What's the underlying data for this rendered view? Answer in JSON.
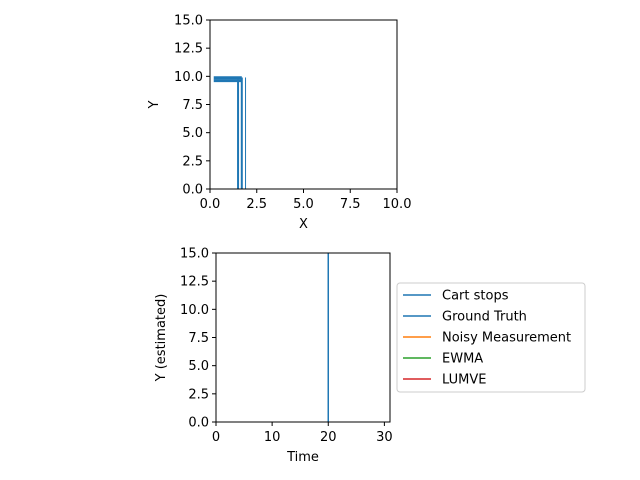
{
  "chart_data": [
    {
      "type": "line",
      "xlabel": "X",
      "ylabel": "Y",
      "xlim": [
        0,
        10
      ],
      "ylim": [
        0,
        15
      ],
      "xticks": [
        "0.0",
        "2.5",
        "5.0",
        "7.5",
        "10.0"
      ],
      "yticks": [
        "0.0",
        "2.5",
        "5.0",
        "7.5",
        "10.0",
        "12.5",
        "15.0"
      ],
      "series": [
        {
          "color": "#1f77b4",
          "x": [
            0.2,
            1.7
          ],
          "y": [
            9.85,
            9.85
          ],
          "width": 3.5
        },
        {
          "color": "#1f77b4",
          "x": [
            0.2,
            1.7
          ],
          "y": [
            9.6,
            9.6
          ],
          "width": 2.5
        },
        {
          "color": "#1f77b4",
          "x": [
            1.5,
            1.5
          ],
          "y": [
            0,
            9.7
          ],
          "width": 2
        },
        {
          "color": "#1f77b4",
          "x": [
            1.7,
            1.7
          ],
          "y": [
            0,
            9.9
          ],
          "width": 2
        },
        {
          "color": "#1f77b4",
          "x": [
            1.9,
            1.9
          ],
          "y": [
            0,
            9.9
          ],
          "width": 1
        }
      ]
    },
    {
      "type": "line",
      "xlabel": "Time",
      "ylabel": "Y (estimated)",
      "xlim": [
        0,
        31
      ],
      "ylim": [
        0,
        15
      ],
      "xticks": [
        "0",
        "10",
        "20",
        "30"
      ],
      "yticks": [
        "0.0",
        "2.5",
        "5.0",
        "7.5",
        "10.0",
        "12.5",
        "15.0"
      ],
      "vline_x": 20,
      "legend": {
        "placement": "right",
        "entries": [
          {
            "label": "Cart stops",
            "color": "#1f77b4"
          },
          {
            "label": "Ground Truth",
            "color": "#1f77b4"
          },
          {
            "label": "Noisy Measurement",
            "color": "#ff7f0e"
          },
          {
            "label": "EWMA",
            "color": "#2ca02c"
          },
          {
            "label": "LUMVE",
            "color": "#d62728"
          }
        ]
      }
    }
  ]
}
